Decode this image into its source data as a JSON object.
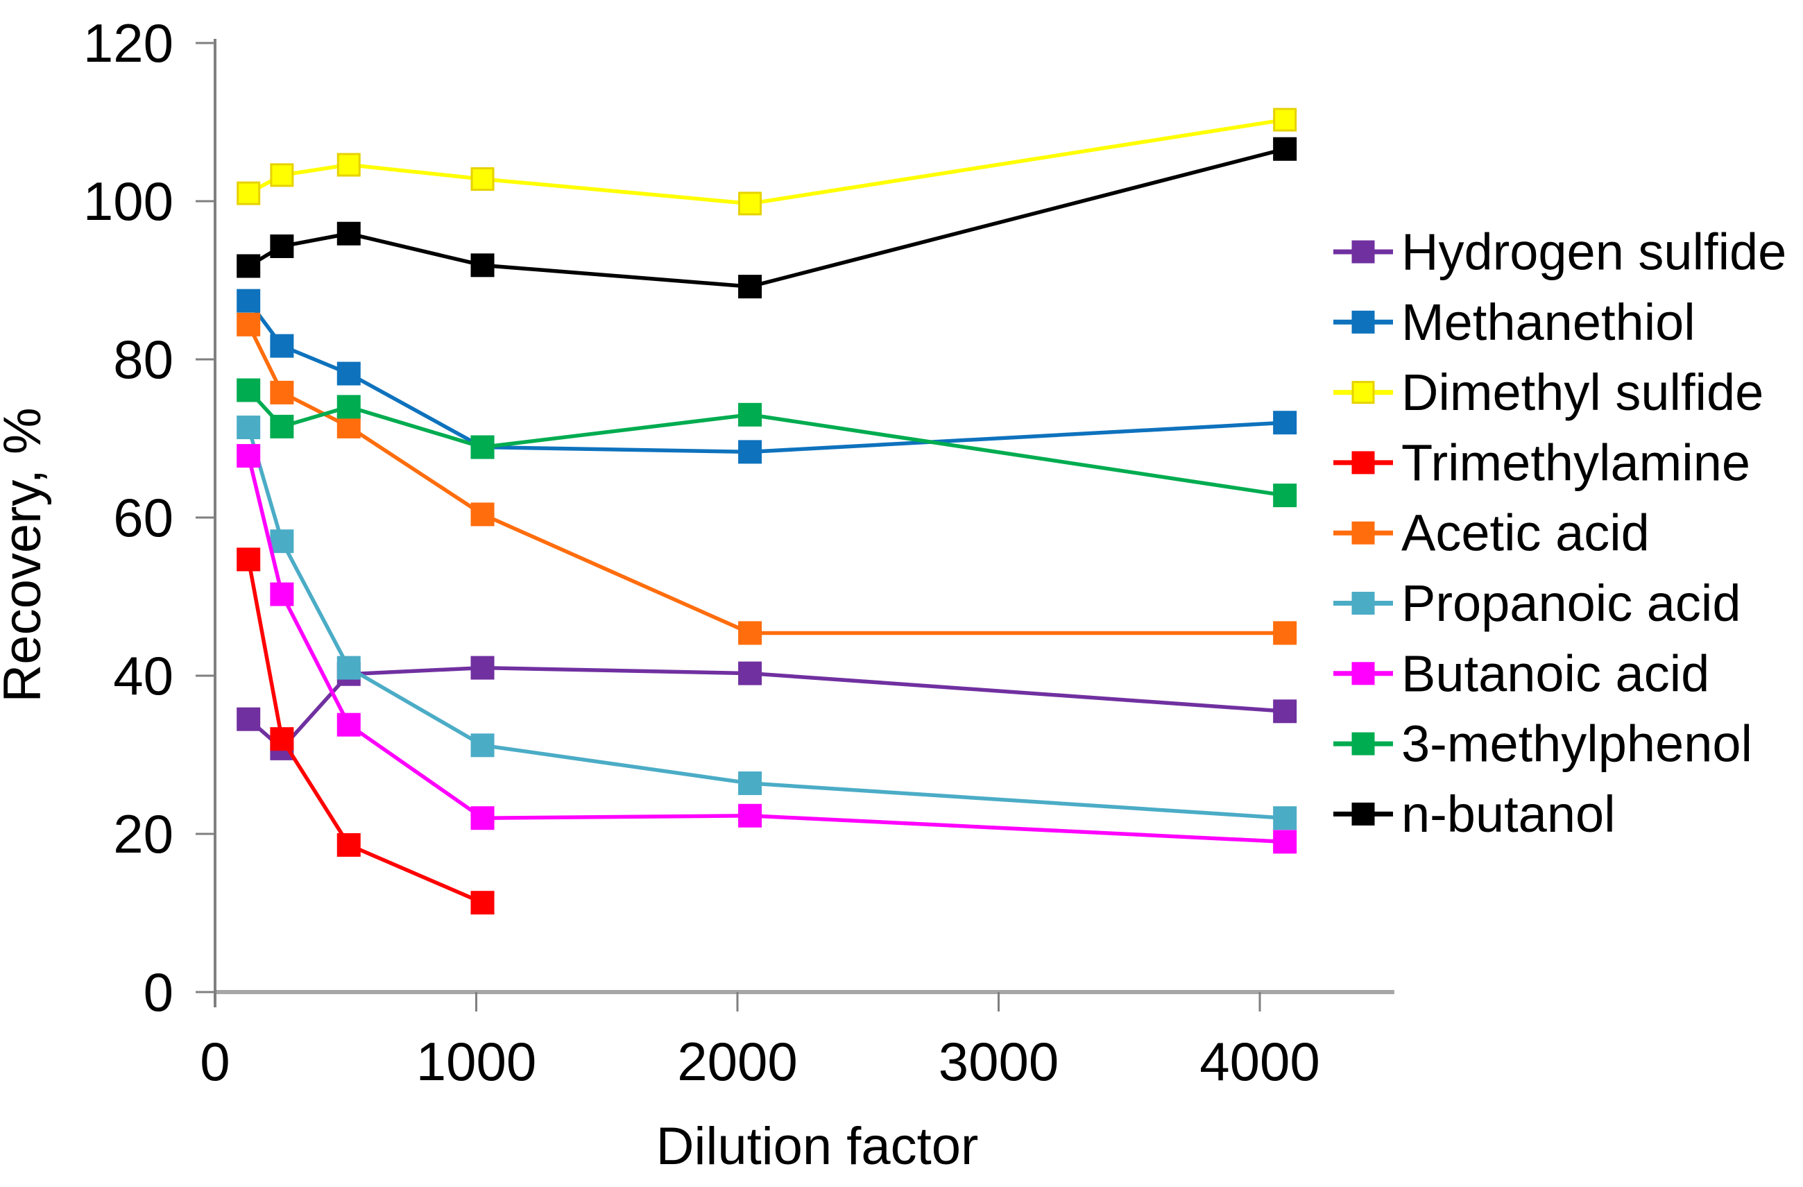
{
  "figure": {
    "background": "#ffffff",
    "text_color": "#000000",
    "y_axis_color": "#7f7f7f",
    "x_axis_color": "#a6a6a6"
  },
  "chart_data": {
    "type": "line",
    "title": "",
    "xlabel": "Dilution factor",
    "ylabel": "Recovery, %",
    "x": [
      128,
      256,
      512,
      1024,
      2048,
      4096
    ],
    "xlim": [
      0,
      4515
    ],
    "ylim": [
      0,
      120
    ],
    "x_ticks": [
      0,
      1000,
      2000,
      3000,
      4000
    ],
    "y_ticks": [
      0,
      20,
      40,
      60,
      80,
      100,
      120
    ],
    "grid": false,
    "legend_position": "right",
    "marker": "square",
    "series": [
      {
        "name": "Hydrogen sulfide",
        "color": "#7030A0",
        "values": [
          34.5,
          30.8,
          40.2,
          41.0,
          40.3,
          35.5
        ]
      },
      {
        "name": "Methanethiol",
        "color": "#0E72BD",
        "values": [
          87.4,
          81.7,
          78.2,
          68.9,
          68.3,
          72.0
        ]
      },
      {
        "name": "Dimethyl sulfide",
        "color": "#FFFF00",
        "marker_edge": "#E6D200",
        "values": [
          101.0,
          103.3,
          104.6,
          102.8,
          99.7,
          110.3
        ]
      },
      {
        "name": "Trimethylamine",
        "color": "#FF0000",
        "values": [
          54.7,
          32.0,
          18.6,
          11.3
        ]
      },
      {
        "name": "Acetic acid",
        "color": "#FF6D0D",
        "values": [
          84.4,
          75.8,
          71.5,
          60.4,
          45.4,
          45.4
        ]
      },
      {
        "name": "Propanoic acid",
        "color": "#4BACC6",
        "values": [
          71.4,
          57.0,
          41.0,
          31.2,
          26.4,
          22.0
        ]
      },
      {
        "name": "Butanoic acid",
        "color": "#FF00FF",
        "values": [
          67.8,
          50.3,
          33.8,
          22.0,
          22.3,
          19.0
        ]
      },
      {
        "name": "3-methylphenol",
        "color": "#00AC50",
        "values": [
          76.1,
          71.5,
          74.0,
          68.9,
          73.0,
          62.8
        ]
      },
      {
        "name": "n-butanol",
        "color": "#000000",
        "values": [
          91.8,
          94.3,
          95.9,
          91.9,
          89.2,
          106.6
        ]
      }
    ]
  }
}
